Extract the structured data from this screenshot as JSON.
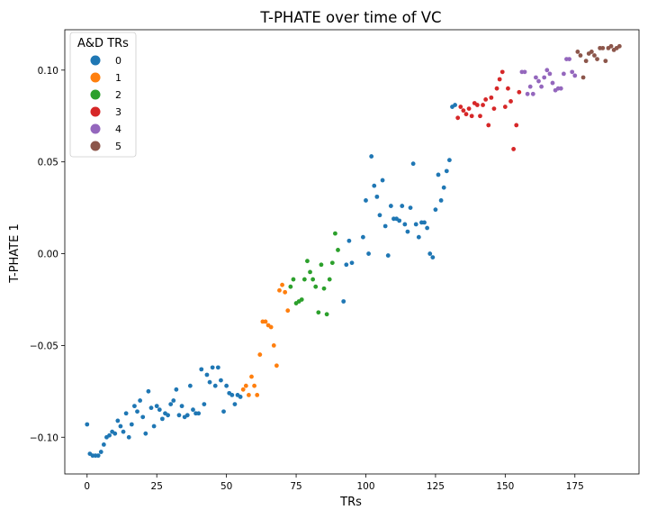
{
  "chart_data": {
    "type": "scatter",
    "title": "T-PHATE over time of VC",
    "xlabel": "TRs",
    "ylabel": "T-PHATE 1",
    "xlim": [
      -8,
      198
    ],
    "ylim": [
      -0.12,
      0.122
    ],
    "xticks": [
      0,
      25,
      50,
      75,
      100,
      125,
      150,
      175
    ],
    "xtick_labels": [
      "0",
      "25",
      "50",
      "75",
      "100",
      "125",
      "150",
      "175"
    ],
    "yticks": [
      -0.1,
      -0.05,
      0.0,
      0.05,
      0.1
    ],
    "ytick_labels": [
      "−0.10",
      "−0.05",
      "0.00",
      "0.05",
      "0.10"
    ],
    "grid": false,
    "legend": {
      "title": "A&D TRs",
      "location": "top-left",
      "entries": [
        {
          "label": "0",
          "color": "#1f77b4"
        },
        {
          "label": "1",
          "color": "#ff7f0e"
        },
        {
          "label": "2",
          "color": "#2ca02c"
        },
        {
          "label": "3",
          "color": "#d62728"
        },
        {
          "label": "4",
          "color": "#9467bd"
        },
        {
          "label": "5",
          "color": "#8c564b"
        }
      ]
    },
    "series": [
      {
        "name": "0",
        "color": "#1f77b4",
        "points": [
          [
            0,
            -0.093
          ],
          [
            1,
            -0.109
          ],
          [
            2,
            -0.11
          ],
          [
            3,
            -0.11
          ],
          [
            4,
            -0.11
          ],
          [
            5,
            -0.108
          ],
          [
            6,
            -0.104
          ],
          [
            7,
            -0.1
          ],
          [
            8,
            -0.099
          ],
          [
            9,
            -0.097
          ],
          [
            10,
            -0.098
          ],
          [
            11,
            -0.091
          ],
          [
            12,
            -0.094
          ],
          [
            13,
            -0.097
          ],
          [
            14,
            -0.087
          ],
          [
            15,
            -0.1
          ],
          [
            16,
            -0.093
          ],
          [
            17,
            -0.083
          ],
          [
            18,
            -0.086
          ],
          [
            19,
            -0.08
          ],
          [
            20,
            -0.089
          ],
          [
            21,
            -0.098
          ],
          [
            22,
            -0.075
          ],
          [
            23,
            -0.084
          ],
          [
            24,
            -0.094
          ],
          [
            25,
            -0.083
          ],
          [
            26,
            -0.085
          ],
          [
            27,
            -0.09
          ],
          [
            28,
            -0.087
          ],
          [
            29,
            -0.088
          ],
          [
            30,
            -0.082
          ],
          [
            31,
            -0.08
          ],
          [
            32,
            -0.074
          ],
          [
            33,
            -0.088
          ],
          [
            34,
            -0.083
          ],
          [
            35,
            -0.089
          ],
          [
            36,
            -0.088
          ],
          [
            37,
            -0.072
          ],
          [
            38,
            -0.085
          ],
          [
            39,
            -0.087
          ],
          [
            40,
            -0.087
          ],
          [
            41,
            -0.063
          ],
          [
            42,
            -0.082
          ],
          [
            43,
            -0.066
          ],
          [
            44,
            -0.07
          ],
          [
            45,
            -0.062
          ],
          [
            46,
            -0.072
          ],
          [
            47,
            -0.062
          ],
          [
            48,
            -0.069
          ],
          [
            49,
            -0.086
          ],
          [
            50,
            -0.072
          ],
          [
            51,
            -0.076
          ],
          [
            52,
            -0.077
          ],
          [
            53,
            -0.082
          ],
          [
            54,
            -0.077
          ],
          [
            55,
            -0.078
          ],
          [
            131,
            0.08
          ],
          [
            132,
            0.081
          ],
          [
            102,
            0.053
          ],
          [
            99,
            0.009
          ],
          [
            100,
            0.029
          ],
          [
            101,
            0.0
          ],
          [
            103,
            0.037
          ],
          [
            104,
            0.031
          ],
          [
            105,
            0.021
          ],
          [
            106,
            0.04
          ],
          [
            107,
            0.015
          ],
          [
            108,
            -0.001
          ],
          [
            109,
            0.026
          ],
          [
            110,
            0.019
          ],
          [
            111,
            0.019
          ],
          [
            112,
            0.018
          ],
          [
            113,
            0.026
          ],
          [
            114,
            0.016
          ],
          [
            115,
            0.012
          ],
          [
            116,
            0.025
          ],
          [
            117,
            0.049
          ],
          [
            118,
            0.016
          ],
          [
            119,
            0.009
          ],
          [
            120,
            0.017
          ],
          [
            121,
            0.017
          ],
          [
            122,
            0.014
          ],
          [
            123,
            0.0
          ],
          [
            124,
            -0.002
          ],
          [
            125,
            0.024
          ],
          [
            126,
            0.043
          ],
          [
            127,
            0.029
          ],
          [
            128,
            0.036
          ],
          [
            129,
            0.045
          ],
          [
            130,
            0.051
          ],
          [
            92,
            -0.026
          ],
          [
            93,
            -0.006
          ],
          [
            94,
            0.007
          ],
          [
            95,
            -0.005
          ]
        ]
      },
      {
        "name": "1",
        "color": "#ff7f0e",
        "points": [
          [
            56,
            -0.074
          ],
          [
            57,
            -0.072
          ],
          [
            58,
            -0.077
          ],
          [
            59,
            -0.067
          ],
          [
            60,
            -0.072
          ],
          [
            61,
            -0.077
          ],
          [
            62,
            -0.055
          ],
          [
            63,
            -0.037
          ],
          [
            64,
            -0.037
          ],
          [
            65,
            -0.039
          ],
          [
            66,
            -0.04
          ],
          [
            67,
            -0.05
          ],
          [
            68,
            -0.061
          ],
          [
            69,
            -0.02
          ],
          [
            70,
            -0.017
          ],
          [
            71,
            -0.021
          ],
          [
            72,
            -0.031
          ]
        ]
      },
      {
        "name": "2",
        "color": "#2ca02c",
        "points": [
          [
            73,
            -0.018
          ],
          [
            74,
            -0.014
          ],
          [
            75,
            -0.027
          ],
          [
            76,
            -0.026
          ],
          [
            77,
            -0.025
          ],
          [
            78,
            -0.014
          ],
          [
            79,
            -0.004
          ],
          [
            80,
            -0.01
          ],
          [
            81,
            -0.014
          ],
          [
            82,
            -0.018
          ],
          [
            83,
            -0.032
          ],
          [
            84,
            -0.006
          ],
          [
            85,
            -0.019
          ],
          [
            86,
            -0.033
          ],
          [
            87,
            -0.014
          ],
          [
            88,
            -0.005
          ],
          [
            89,
            0.011
          ],
          [
            90,
            0.002
          ]
        ]
      },
      {
        "name": "3",
        "color": "#d62728",
        "points": [
          [
            133,
            0.074
          ],
          [
            134,
            0.08
          ],
          [
            135,
            0.078
          ],
          [
            136,
            0.076
          ],
          [
            137,
            0.079
          ],
          [
            138,
            0.075
          ],
          [
            139,
            0.082
          ],
          [
            140,
            0.081
          ],
          [
            141,
            0.075
          ],
          [
            142,
            0.081
          ],
          [
            143,
            0.084
          ],
          [
            144,
            0.07
          ],
          [
            145,
            0.085
          ],
          [
            146,
            0.079
          ],
          [
            147,
            0.09
          ],
          [
            148,
            0.095
          ],
          [
            149,
            0.099
          ],
          [
            150,
            0.08
          ],
          [
            151,
            0.09
          ],
          [
            152,
            0.083
          ],
          [
            153,
            0.057
          ],
          [
            154,
            0.07
          ],
          [
            155,
            0.088
          ]
        ]
      },
      {
        "name": "4",
        "color": "#9467bd",
        "points": [
          [
            156,
            0.099
          ],
          [
            157,
            0.099
          ],
          [
            158,
            0.087
          ],
          [
            159,
            0.091
          ],
          [
            160,
            0.087
          ],
          [
            161,
            0.096
          ],
          [
            162,
            0.094
          ],
          [
            163,
            0.091
          ],
          [
            164,
            0.096
          ],
          [
            165,
            0.1
          ],
          [
            166,
            0.098
          ],
          [
            167,
            0.093
          ],
          [
            168,
            0.089
          ],
          [
            169,
            0.09
          ],
          [
            170,
            0.09
          ],
          [
            171,
            0.098
          ],
          [
            172,
            0.106
          ],
          [
            173,
            0.106
          ],
          [
            174,
            0.099
          ],
          [
            175,
            0.097
          ]
        ]
      },
      {
        "name": "5",
        "color": "#8c564b",
        "points": [
          [
            176,
            0.11
          ],
          [
            177,
            0.108
          ],
          [
            178,
            0.096
          ],
          [
            179,
            0.105
          ],
          [
            180,
            0.109
          ],
          [
            181,
            0.11
          ],
          [
            182,
            0.108
          ],
          [
            183,
            0.106
          ],
          [
            184,
            0.112
          ],
          [
            185,
            0.112
          ],
          [
            186,
            0.105
          ],
          [
            187,
            0.112
          ],
          [
            188,
            0.113
          ],
          [
            189,
            0.111
          ],
          [
            190,
            0.112
          ],
          [
            191,
            0.113
          ]
        ]
      }
    ]
  }
}
